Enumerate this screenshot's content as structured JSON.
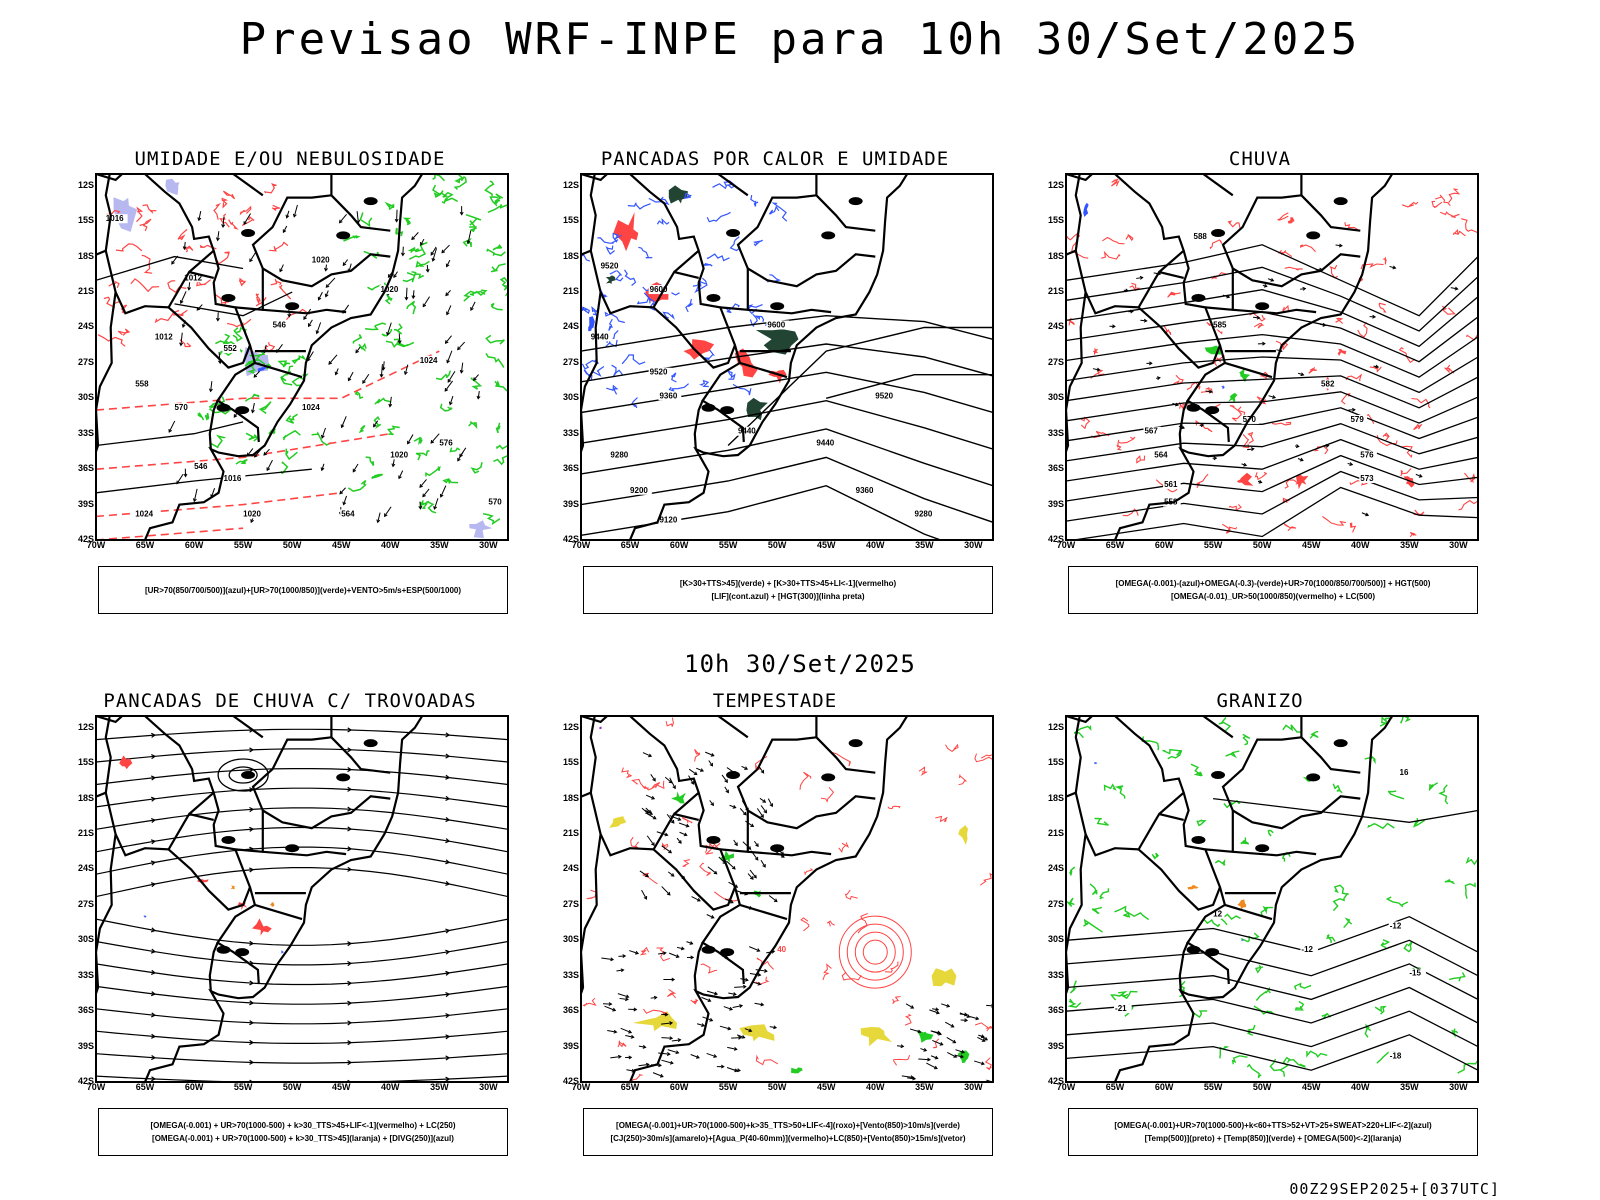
{
  "header": {
    "title": "Previsao WRF-INPE  para 10h 30/Set/2025",
    "subtitle": "10h 30/Set/2025",
    "footer": "00Z29SEP2025+[037UTC]"
  },
  "axes": {
    "lat_labels": [
      "12S",
      "15S",
      "18S",
      "21S",
      "24S",
      "27S",
      "30S",
      "33S",
      "36S",
      "39S",
      "42S"
    ],
    "lon_labels": [
      "70W",
      "65W",
      "60W",
      "55W",
      "50W",
      "45W",
      "40W",
      "35W",
      "30W"
    ]
  },
  "panels": [
    {
      "title": "UMIDADE E/OU NEBULOSIDADE",
      "legend": [
        "[UR>70(850/700/500)](azul)+[UR>70(1000/850)](verde)+VENTO>5m/s+ESP(500/1000)"
      ],
      "contour_labels": [
        "1016",
        "1012",
        "1012",
        "1020",
        "1020",
        "1024",
        "1016",
        "1020",
        "1024",
        "1020",
        "1024",
        "570",
        "576",
        "570",
        "564",
        "558",
        "552",
        "546",
        "546"
      ]
    },
    {
      "title": "PANCADAS POR CALOR E UMIDADE",
      "legend": [
        "[K>30+TTS>45](verde) + [K>30+TTS>45+LI<-1](vermelho)",
        "[LIF](cont.azul) + [HGT(300)](linha preta)"
      ],
      "contour_labels": [
        "9520",
        "9600",
        "9440",
        "9520",
        "9440",
        "9360",
        "9280",
        "9200",
        "9120",
        "9600",
        "9520",
        "9440",
        "9360",
        "9280"
      ]
    },
    {
      "title": "CHUVA",
      "legend": [
        "[OMEGA(-0.001)-(azul)+OMEGA(-0.3)-(verde)+UR>70(1000/850/700/500)] + HGT(500)",
        "[OMEGA(-0.01)_UR>50(1000/850)(vermelho) + LC(500)"
      ],
      "contour_labels": [
        "588",
        "585",
        "582",
        "579",
        "576",
        "573",
        "570",
        "567",
        "564",
        "561",
        "558"
      ]
    },
    {
      "title": "PANCADAS DE CHUVA C/ TROVOADAS",
      "legend": [
        "[OMEGA(-0.001) + UR>70(1000-500) + k>30_TTS>45+LIF<-1](vermelho) + LC(250)",
        "[OMEGA(-0.001) + UR>70(1000-500) + k>30_TTS>45](laranja) + [DIVG(250)](azul)"
      ],
      "contour_labels": []
    },
    {
      "title": "TEMPESTADE",
      "legend": [
        "[OMEGA(-0.001)+UR>70(1000-500)+k>35_TTS>50+LIF<-4](roxo)+[Vento(850)>10m/s](verde)",
        "[CJ(250)>30m/s](amarelo)+[Agua_P(40-60mm)](vermelho)+LC(850)+[Vento(850)>15m/s](vetor)"
      ],
      "contour_labels": [
        "40"
      ]
    },
    {
      "title": "GRANIZO",
      "legend": [
        "[OMEGA(-0.001)+UR>70(1000-500)+k<60+TTS>52+VT>25+SWEAT>220+LIF<-2](azul)",
        "[Temp(500)](preto) + [Temp(850)](verde) + [OMEGA(500)<-2](laranja)"
      ],
      "contour_labels": [
        "-12",
        "-12",
        "-18",
        "-21",
        "-15",
        "12",
        "16"
      ]
    }
  ],
  "colors": {
    "red": "#ff4444",
    "green": "#22cc22",
    "blue": "#3355ff",
    "lavender": "#b8b8f0",
    "yellow": "#e6d83a",
    "orange": "#f08a20",
    "darkgreen": "#224433",
    "purple": "#8800cc"
  }
}
